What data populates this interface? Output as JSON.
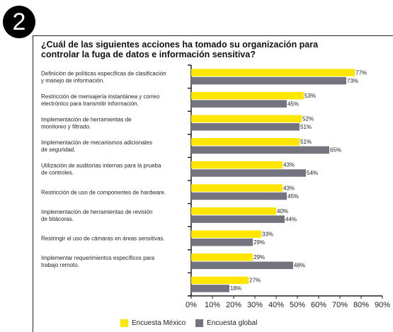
{
  "badge": "2",
  "question": "¿Cuál de las siguientes acciones ha tomado su organización para controlar la fuga de datos e información sensitiva?",
  "chart_data": {
    "type": "bar",
    "orientation": "horizontal",
    "categories": [
      [
        "Definición de políticas específicas de clasificación",
        "y manejo de información."
      ],
      [
        "Restricción de mensajería instantánea y correo",
        "electrónico para transmitir información."
      ],
      [
        "Implementación de herramientas de",
        "monitoreo y filtrado."
      ],
      [
        "Implementación de mecanismos adicionales",
        "de seguridad."
      ],
      [
        "Utilización de auditorías internas para la prueba",
        "de controles."
      ],
      [
        "Restricción de uso de componentes de hardware."
      ],
      [
        "Implementación de herramientas de revisión",
        "de bitácoras."
      ],
      [
        "Restringir el uso de cámaras en áreas sensitivas."
      ],
      [
        "Implementar requerimientos específicos para",
        "trabajo remoto."
      ],
      []
    ],
    "series": [
      {
        "name": "Encuesta México",
        "color": "#FFE600",
        "values": [
          77,
          53,
          52,
          51,
          43,
          43,
          40,
          33,
          29,
          27
        ]
      },
      {
        "name": "Encuesta global",
        "color": "#747480",
        "values": [
          73,
          45,
          51,
          65,
          54,
          45,
          44,
          29,
          48,
          18
        ]
      }
    ],
    "value_suffix": "%",
    "xlim": [
      0,
      90
    ],
    "xticks": [
      "0%",
      "10%",
      "20%",
      "30%",
      "40%",
      "50%",
      "60%",
      "70%",
      "80%",
      "90%"
    ],
    "legend_position": "bottom"
  }
}
